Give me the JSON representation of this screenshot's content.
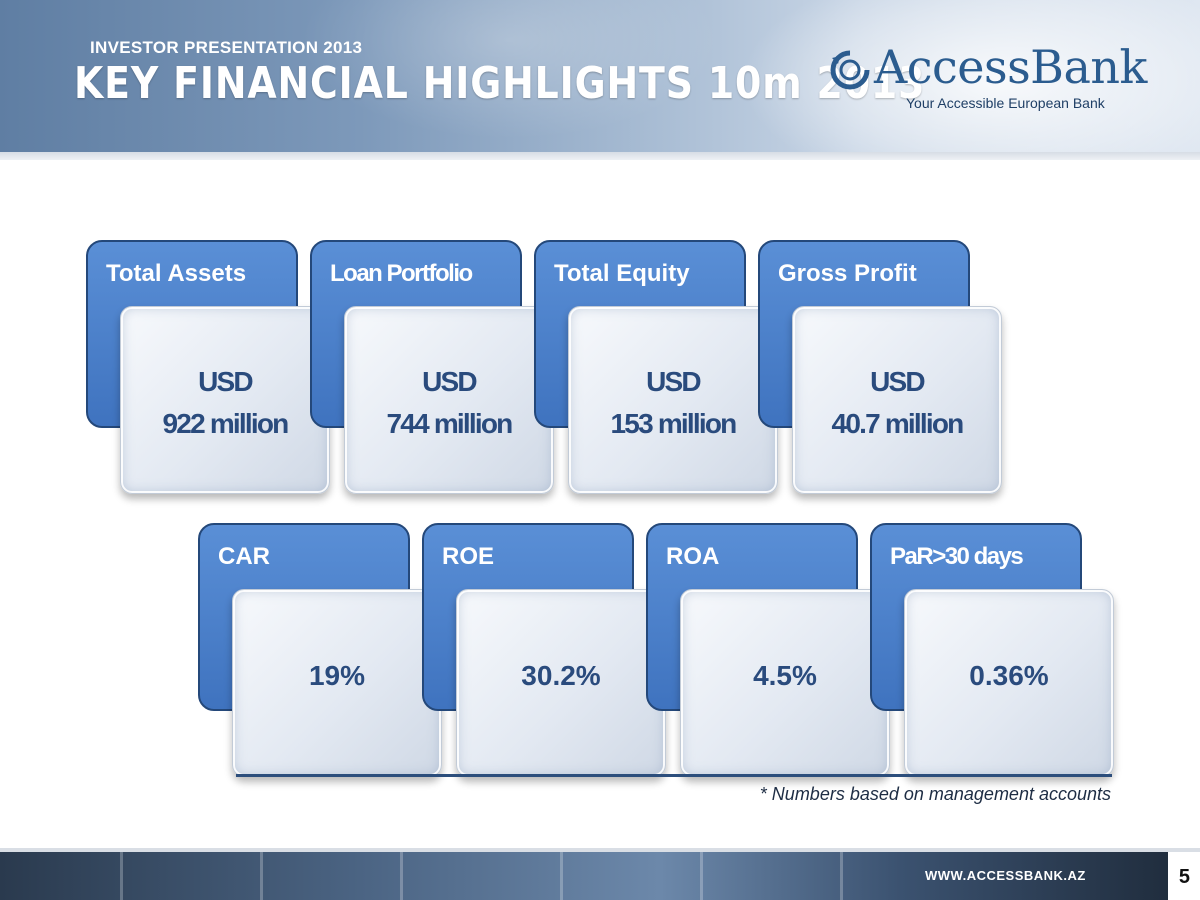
{
  "header": {
    "kicker": "INVESTOR PRESENTATION 2013",
    "title": "KEY FINANCIAL HIGHLIGHTS 10m 2013"
  },
  "brand": {
    "name": "AccessBank",
    "tagline": "Your Accessible European Bank",
    "colors": {
      "blue": "#2b5c8f",
      "card_blue": "#4a80cc",
      "value_text": "#2a4b7d"
    }
  },
  "row1": [
    {
      "label": "Total Assets",
      "line1": "USD",
      "line2": "922 million"
    },
    {
      "label": "Loan Portfolio",
      "line1": "USD",
      "line2": "744 million"
    },
    {
      "label": "Total Equity",
      "line1": "USD",
      "line2": "153 million"
    },
    {
      "label": "Gross Profit",
      "line1": "USD",
      "line2": "40.7 million"
    }
  ],
  "row2": [
    {
      "label": "CAR",
      "value": "19%"
    },
    {
      "label": "ROE",
      "value": "30.2%"
    },
    {
      "label": "ROA",
      "value": "4.5%"
    },
    {
      "label": "PaR>30 days",
      "value": "0.36%"
    }
  ],
  "footnote": "* Numbers based on management accounts",
  "footer": {
    "url": "WWW.ACCESSBANK.AZ",
    "page_number": "5"
  }
}
